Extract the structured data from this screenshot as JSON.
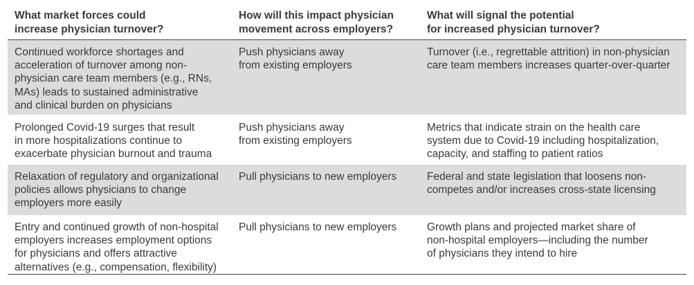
{
  "headers": [
    [
      "What market forces could",
      "increase physician turnover?"
    ],
    [
      "How will this impact physician",
      "movement across employers?"
    ],
    [
      "What will signal the potential",
      "for increased physician turnover?"
    ]
  ],
  "rows": [
    {
      "force": [
        "Continued workforce shortages and",
        "acceleration of turnover among non-",
        "physician care team members (e.g., RNs,",
        "MAs) leads to sustained administrative",
        "and clinical burden on physicians"
      ],
      "impact": [
        "Push physicians away",
        "from existing employers"
      ],
      "signal": [
        "Turnover (i.e., regrettable attrition) in non-physician",
        "care team members increases quarter-over-quarter"
      ]
    },
    {
      "force": [
        "Prolonged Covid-19 surges that result",
        "in more hospitalizations continue to",
        "exacerbate physician burnout and trauma"
      ],
      "impact": [
        "Push physicians away",
        "from existing employers"
      ],
      "signal": [
        "Metrics that indicate strain on the health care",
        "system due to Covid-19 including hospitalization,",
        "capacity, and staffing to patient ratios"
      ]
    },
    {
      "force": [
        "Relaxation of regulatory and organizational",
        "policies allows physicians to change",
        "employers more easily"
      ],
      "impact": [
        "Pull physicians to new employers"
      ],
      "signal": [
        "Federal and state legislation that loosens non-",
        "competes and/or increases cross-state licensing"
      ]
    },
    {
      "force": [
        "Entry and continued growth of non-hospital",
        "employers increases employment options",
        "for physicians and offers attractive",
        "alternatives (e.g., compensation, flexibility)"
      ],
      "impact": [
        "Pull physicians to new employers"
      ],
      "signal": [
        "Growth plans and projected market share of",
        "non-hospital employers—including the number",
        "of physicians they intend to hire"
      ]
    }
  ]
}
